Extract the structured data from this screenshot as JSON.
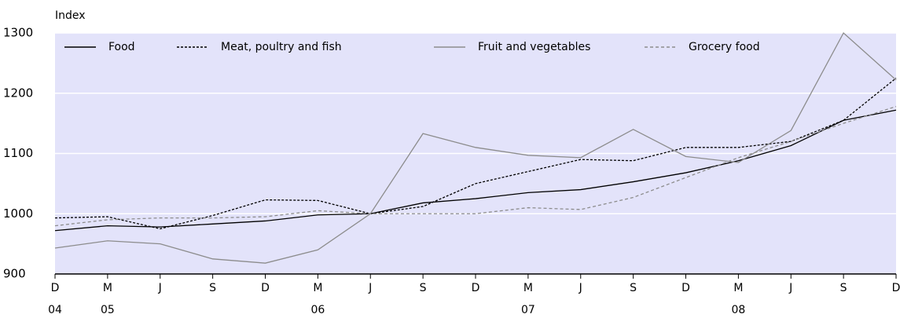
{
  "chart_data": {
    "type": "line",
    "y_label": "Index",
    "categories": [
      "D",
      "M",
      "J",
      "S",
      "D",
      "M",
      "J",
      "S",
      "D",
      "M",
      "J",
      "S",
      "D",
      "M",
      "J",
      "S",
      "D"
    ],
    "year_labels": [
      "04",
      "05",
      null,
      null,
      null,
      "06",
      null,
      null,
      null,
      "07",
      null,
      null,
      null,
      "08",
      null,
      null,
      null
    ],
    "series": [
      {
        "name": "Food",
        "color": "#000000",
        "dash": "solid",
        "values": [
          972,
          980,
          978,
          983,
          988,
          998,
          1000,
          1018,
          1025,
          1035,
          1040,
          1053,
          1068,
          1088,
          1113,
          1155,
          1172
        ]
      },
      {
        "name": "Meat, poultry and fish",
        "color": "#000000",
        "dash": "dotted",
        "values": [
          993,
          995,
          975,
          997,
          1023,
          1022,
          1000,
          1012,
          1050,
          1070,
          1090,
          1088,
          1110,
          1110,
          1120,
          1155,
          1225
        ]
      },
      {
        "name": "Fruit and vegetables",
        "color": "#8c8c8c",
        "dash": "solid",
        "values": [
          943,
          955,
          950,
          925,
          918,
          940,
          1000,
          1133,
          1110,
          1097,
          1093,
          1140,
          1095,
          1085,
          1138,
          1300,
          1222
        ]
      },
      {
        "name": "Grocery food",
        "color": "#8c8c8c",
        "dash": "dashed",
        "values": [
          980,
          990,
          993,
          993,
          995,
          1005,
          1000,
          1000,
          1000,
          1010,
          1007,
          1027,
          1060,
          1093,
          1120,
          1150,
          1178
        ]
      }
    ],
    "ylim": [
      900,
      1300
    ],
    "yticks": [
      900,
      1000,
      1100,
      1200,
      1300
    ],
    "grid": true,
    "background": "#e3e3fa",
    "legend": "top"
  }
}
